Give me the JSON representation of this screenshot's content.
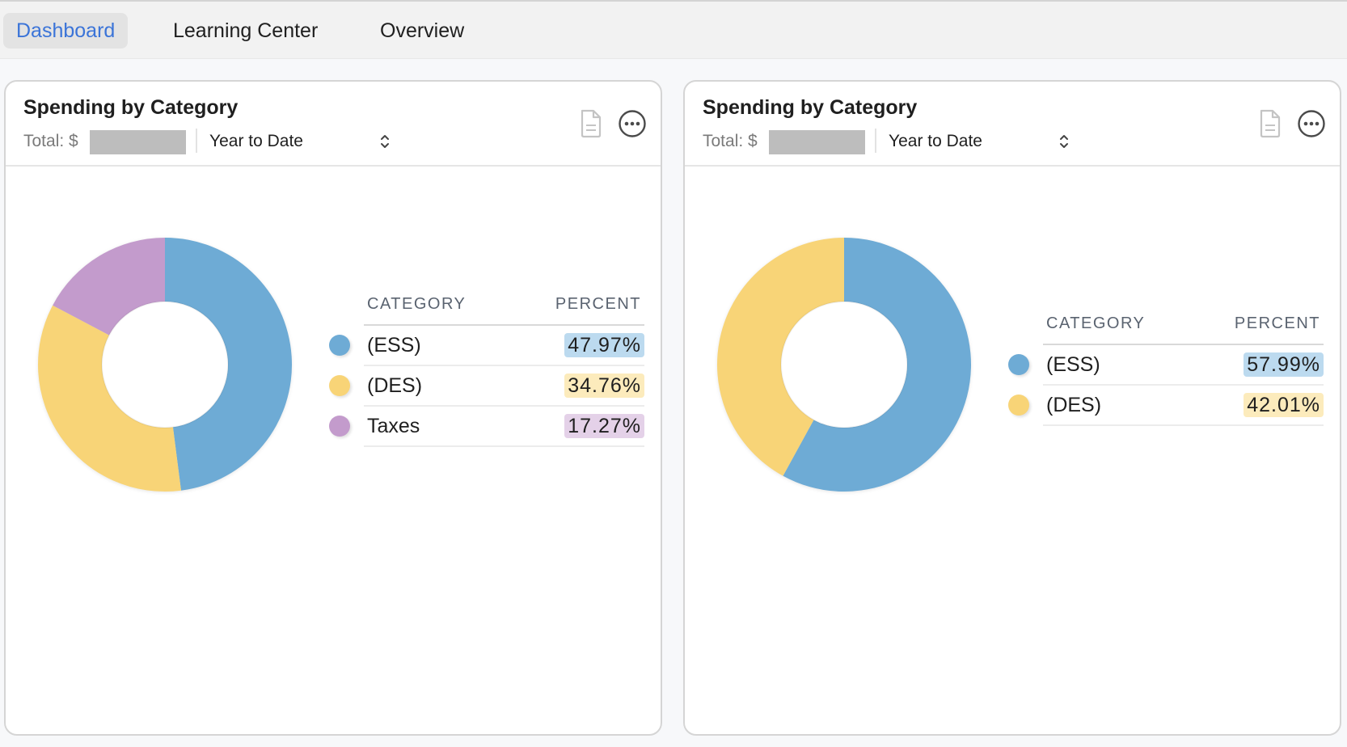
{
  "nav": {
    "tabs": [
      {
        "label": "Dashboard",
        "active": true
      },
      {
        "label": "Learning Center",
        "active": false
      },
      {
        "label": "Overview",
        "active": false
      }
    ]
  },
  "colors": {
    "ess": "#6eabd5",
    "des": "#f8d477",
    "taxes": "#c39bcc",
    "ess_badge": "#bcdaef",
    "des_badge": "#fcebbc",
    "taxes_badge": "#e4d1e8",
    "accent": "#3b74d8"
  },
  "cards": [
    {
      "title": "Spending by Category",
      "total_label": "Total: $",
      "period": "Year to Date",
      "table_headers": {
        "category": "CATEGORY",
        "percent": "PERCENT"
      },
      "rows": [
        {
          "label": "(ESS)",
          "percent": "47.97%",
          "value": 47.97,
          "color_key": "ess"
        },
        {
          "label": "(DES)",
          "percent": "34.76%",
          "value": 34.76,
          "color_key": "des"
        },
        {
          "label": "Taxes",
          "percent": "17.27%",
          "value": 17.27,
          "color_key": "taxes"
        }
      ]
    },
    {
      "title": "Spending by Category",
      "total_label": "Total: $",
      "period": "Year to Date",
      "table_headers": {
        "category": "CATEGORY",
        "percent": "PERCENT"
      },
      "rows": [
        {
          "label": "(ESS)",
          "percent": "57.99%",
          "value": 57.99,
          "color_key": "ess"
        },
        {
          "label": "(DES)",
          "percent": "42.01%",
          "value": 42.01,
          "color_key": "des"
        }
      ]
    }
  ],
  "chart_data": [
    {
      "type": "pie",
      "title": "Spending by Category",
      "categories": [
        "(ESS)",
        "(DES)",
        "Taxes"
      ],
      "values": [
        47.97,
        34.76,
        17.27
      ],
      "donut": true
    },
    {
      "type": "pie",
      "title": "Spending by Category",
      "categories": [
        "(ESS)",
        "(DES)"
      ],
      "values": [
        57.99,
        42.01
      ],
      "donut": true
    }
  ]
}
